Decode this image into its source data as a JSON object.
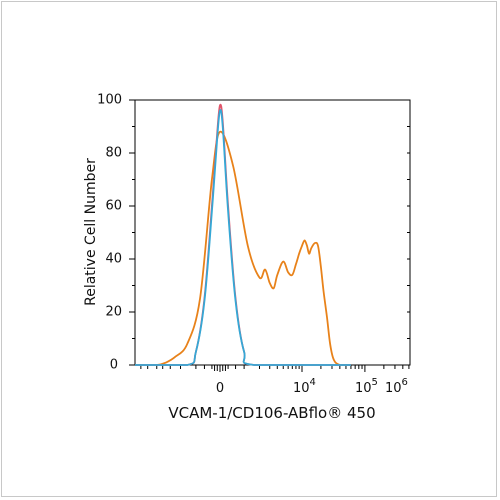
{
  "chart_data": {
    "type": "line",
    "title": "",
    "xlabel": "VCAM-1/CD106-ABflo® 450",
    "ylabel": "Relative Cell Number",
    "x_scale": "biexponential",
    "ylim": [
      0,
      100
    ],
    "y_ticks": [
      "0",
      "20",
      "40",
      "60",
      "80",
      "100"
    ],
    "x_ticks": [
      {
        "base": "0",
        "exp": ""
      },
      {
        "base": "10",
        "exp": "4"
      },
      {
        "base": "10",
        "exp": "5"
      },
      {
        "base": "10",
        "exp": "6"
      }
    ],
    "grid": false,
    "legend": "none",
    "series": [
      {
        "color": "#e8821a",
        "x": [
          -12000,
          -5000,
          -3500,
          -2500,
          -1500,
          -800,
          -300,
          0,
          500,
          1200,
          2000,
          2500,
          3000,
          3500,
          4000,
          5000,
          6000,
          7000,
          8000,
          9000,
          10000,
          11000,
          12000,
          13000,
          14000,
          16000,
          18000,
          20000,
          22000,
          25000,
          28000,
          32000,
          40000,
          60000
        ],
        "y": [
          0,
          0,
          1,
          3,
          8,
          25,
          70,
          88,
          75,
          45,
          33,
          36,
          31,
          29,
          34,
          39,
          35,
          34,
          38,
          42,
          45,
          47,
          45,
          42,
          44,
          46,
          45,
          37,
          28,
          18,
          8,
          2,
          0,
          0
        ]
      },
      {
        "color": "#e0556a",
        "x": [
          -12000,
          -1500,
          -1000,
          -600,
          -300,
          -100,
          0,
          100,
          300,
          600,
          1000,
          1600,
          60000
        ],
        "y": [
          0,
          0,
          5,
          25,
          60,
          88,
          98,
          92,
          60,
          25,
          5,
          0,
          0
        ]
      },
      {
        "color": "#35a8d6",
        "x": [
          -12000,
          -1500,
          -1000,
          -600,
          -300,
          -100,
          0,
          100,
          300,
          600,
          1000,
          1600,
          60000
        ],
        "y": [
          0,
          0,
          5,
          24,
          58,
          86,
          96,
          90,
          58,
          24,
          5,
          0,
          0
        ]
      }
    ]
  }
}
